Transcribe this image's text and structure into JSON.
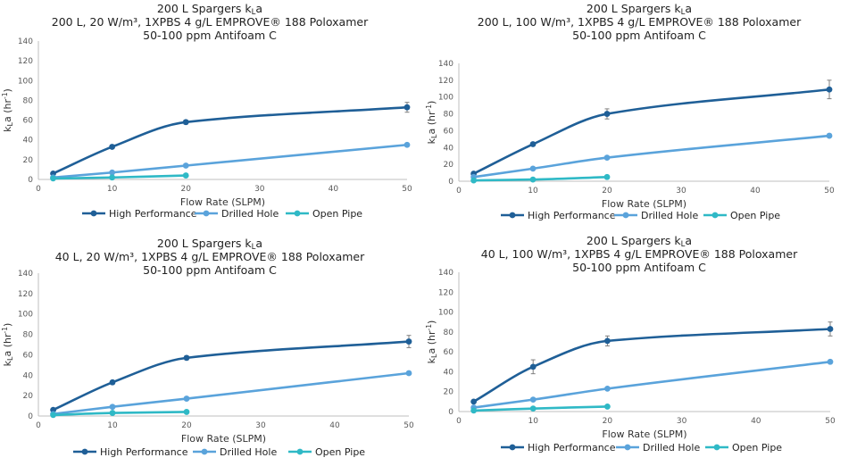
{
  "colors": {
    "high": "#1f5f97",
    "drilled": "#5aa3db",
    "open": "#2fb9c6",
    "axis": "#bfbfbf",
    "err": "#7f7f7f"
  },
  "chart_data": [
    {
      "type": "line",
      "title": [
        "200 L Spargers kLa",
        "200 L, 20 W/m³, 1XPBS 4 g/L EMPROVE® 188 Poloxamer",
        "50-100 ppm Antifoam C"
      ],
      "title_parts": {
        "line1_pre": "200 L Spargers k",
        "line1_sub": "L",
        "line1_post": "a",
        "line2": "200 L, 20 W/m³, 1XPBS 4 g/L EMPROVE® 188 Poloxamer",
        "line3": "50-100 ppm Antifoam C"
      },
      "xlabel": "Flow Rate (SLPM)",
      "ylabel": "kLa (hr⁻¹)",
      "ylabel_parts": {
        "pre": "k",
        "sub": "L",
        "post": "a (hr",
        "sup": "-1",
        "end": ")"
      },
      "xlim": [
        0,
        50
      ],
      "ylim": [
        0,
        140
      ],
      "xticks": [
        0,
        10,
        20,
        30,
        40,
        50
      ],
      "yticks": [
        0,
        20,
        40,
        60,
        80,
        100,
        120,
        140
      ],
      "series": [
        {
          "name": "High Performance",
          "x": [
            2,
            10,
            20,
            50
          ],
          "y": [
            6,
            33,
            58,
            73
          ],
          "err": [
            0,
            1,
            2,
            5
          ]
        },
        {
          "name": "Drilled Hole",
          "x": [
            2,
            10,
            20,
            50
          ],
          "y": [
            2,
            7,
            14,
            35
          ],
          "err": [
            0,
            0,
            0,
            0
          ]
        },
        {
          "name": "Open Pipe",
          "x": [
            2,
            10,
            20
          ],
          "y": [
            1,
            2,
            4
          ],
          "err": [
            0,
            0,
            0
          ]
        }
      ]
    },
    {
      "type": "line",
      "title": [
        "200 L Spargers kLa",
        "200 L, 100 W/m³, 1XPBS 4 g/L EMPROVE® 188 Poloxamer",
        "50-100 ppm Antifoam C"
      ],
      "title_parts": {
        "line1_pre": "200 L Spargers k",
        "line1_sub": "L",
        "line1_post": "a",
        "line2": "200 L, 100 W/m³, 1XPBS 4 g/L EMPROVE® 188 Poloxamer",
        "line3": "50-100 ppm Antifoam C"
      },
      "xlabel": "Flow Rate (SLPM)",
      "ylabel": "kLa (hr⁻¹)",
      "ylabel_parts": {
        "pre": "k",
        "sub": "L",
        "post": "a (hr",
        "sup": "-1",
        "end": ")"
      },
      "xlim": [
        0,
        50
      ],
      "ylim": [
        0,
        140
      ],
      "xticks": [
        0,
        10,
        20,
        30,
        40,
        50
      ],
      "yticks": [
        0,
        20,
        40,
        60,
        80,
        100,
        120,
        140
      ],
      "series": [
        {
          "name": "High Performance",
          "x": [
            2,
            10,
            20,
            50
          ],
          "y": [
            9,
            44,
            80,
            109
          ],
          "err": [
            0,
            1,
            6,
            11
          ]
        },
        {
          "name": "Drilled Hole",
          "x": [
            2,
            10,
            20,
            50
          ],
          "y": [
            5,
            15,
            28,
            54
          ],
          "err": [
            0,
            0,
            0,
            0
          ]
        },
        {
          "name": "Open Pipe",
          "x": [
            2,
            10,
            20
          ],
          "y": [
            1,
            2,
            5
          ],
          "err": [
            0,
            0,
            0
          ]
        }
      ]
    },
    {
      "type": "line",
      "title": [
        "200 L Spargers kLa",
        "40 L, 20 W/m³, 1XPBS 4 g/L EMPROVE® 188 Poloxamer",
        "50-100 ppm Antifoam C"
      ],
      "title_parts": {
        "line1_pre": "200 L Spargers k",
        "line1_sub": "L",
        "line1_post": "a",
        "line2": "40 L, 20 W/m³, 1XPBS 4 g/L EMPROVE® 188 Poloxamer",
        "line3": "50-100 ppm Antifoam C"
      },
      "xlabel": "Flow Rate (SLPM)",
      "ylabel": "kLa (hr⁻¹)",
      "ylabel_parts": {
        "pre": "k",
        "sub": "L",
        "post": "a (hr",
        "sup": "-1",
        "end": ")"
      },
      "xlim": [
        0,
        50
      ],
      "ylim": [
        0,
        140
      ],
      "xticks": [
        0,
        10,
        20,
        30,
        40,
        50
      ],
      "yticks": [
        0,
        20,
        40,
        60,
        80,
        100,
        120,
        140
      ],
      "series": [
        {
          "name": "High Performance",
          "x": [
            2,
            10,
            20,
            50
          ],
          "y": [
            6,
            33,
            57,
            73
          ],
          "err": [
            0,
            1,
            2,
            6
          ]
        },
        {
          "name": "Drilled Hole",
          "x": [
            2,
            10,
            20,
            50
          ],
          "y": [
            2,
            9,
            17,
            42
          ],
          "err": [
            0,
            0,
            0,
            0
          ]
        },
        {
          "name": "Open Pipe",
          "x": [
            2,
            10,
            20
          ],
          "y": [
            1,
            3,
            4
          ],
          "err": [
            0,
            0,
            0
          ]
        }
      ]
    },
    {
      "type": "line",
      "title": [
        "200 L Spargers kLa",
        "40 L, 100 W/m³, 1XPBS 4 g/L EMPROVE® 188 Poloxamer",
        "50-100 ppm Antifoam C"
      ],
      "title_parts": {
        "line1_pre": "200 L Spargers k",
        "line1_sub": "L",
        "line1_post": "a",
        "line2": "40 L, 100 W/m³, 1XPBS 4 g/L EMPROVE® 188 Poloxamer",
        "line3": "50-100 ppm Antifoam C"
      },
      "xlabel": "Flow Rate (SLPM)",
      "ylabel": "kLa (hr⁻¹)",
      "ylabel_parts": {
        "pre": "k",
        "sub": "L",
        "post": "a (hr",
        "sup": "-1",
        "end": ")"
      },
      "xlim": [
        0,
        50
      ],
      "ylim": [
        0,
        140
      ],
      "xticks": [
        0,
        10,
        20,
        30,
        40,
        50
      ],
      "yticks": [
        0,
        20,
        40,
        60,
        80,
        100,
        120,
        140
      ],
      "series": [
        {
          "name": "High Performance",
          "x": [
            2,
            10,
            20,
            50
          ],
          "y": [
            10,
            45,
            71,
            83
          ],
          "err": [
            0,
            7,
            5,
            7
          ]
        },
        {
          "name": "Drilled Hole",
          "x": [
            2,
            10,
            20,
            50
          ],
          "y": [
            4,
            12,
            23,
            50
          ],
          "err": [
            0,
            0,
            0,
            0
          ]
        },
        {
          "name": "Open Pipe",
          "x": [
            2,
            10,
            20
          ],
          "y": [
            1,
            3,
            5
          ],
          "err": [
            0,
            0,
            0
          ]
        }
      ]
    }
  ]
}
